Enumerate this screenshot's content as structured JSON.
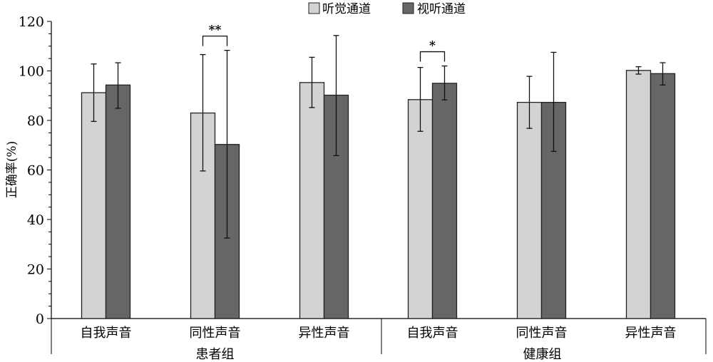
{
  "chart_data": {
    "type": "bar",
    "title": "",
    "ylabel": "正确率(%)",
    "xlabel": "",
    "ylim": [
      0,
      120
    ],
    "yticks": [
      0,
      20,
      40,
      60,
      80,
      100,
      120
    ],
    "minor_tick_step": 5,
    "grid": false,
    "legend_placement": "top-center",
    "categories": [
      "自我声音",
      "同性声音",
      "异性声音",
      "自我声音",
      "同性声音",
      "异性声音"
    ],
    "groups": [
      {
        "label": "患者组",
        "category_indices": [
          0,
          1,
          2
        ]
      },
      {
        "label": "健康组",
        "category_indices": [
          3,
          4,
          5
        ]
      }
    ],
    "series": [
      {
        "name": "听觉通道",
        "color": "#d3d3d3",
        "values": [
          91.2,
          83.0,
          95.3,
          88.4,
          87.3,
          100.2
        ],
        "error_low": [
          79.6,
          59.6,
          85.2,
          75.6,
          76.8,
          98.7
        ],
        "error_high": [
          102.8,
          106.6,
          105.5,
          101.4,
          97.8,
          101.7
        ]
      },
      {
        "name": "视听通道",
        "color": "#666666",
        "values": [
          94.3,
          70.3,
          90.2,
          95.0,
          87.3,
          98.9
        ],
        "error_low": [
          84.9,
          32.5,
          65.8,
          88.3,
          67.5,
          94.3
        ],
        "error_high": [
          103.3,
          108.3,
          114.3,
          102.0,
          107.5,
          103.3
        ]
      }
    ],
    "annotations": [
      {
        "category_index": 1,
        "text": "**"
      },
      {
        "category_index": 3,
        "text": "*"
      }
    ]
  }
}
